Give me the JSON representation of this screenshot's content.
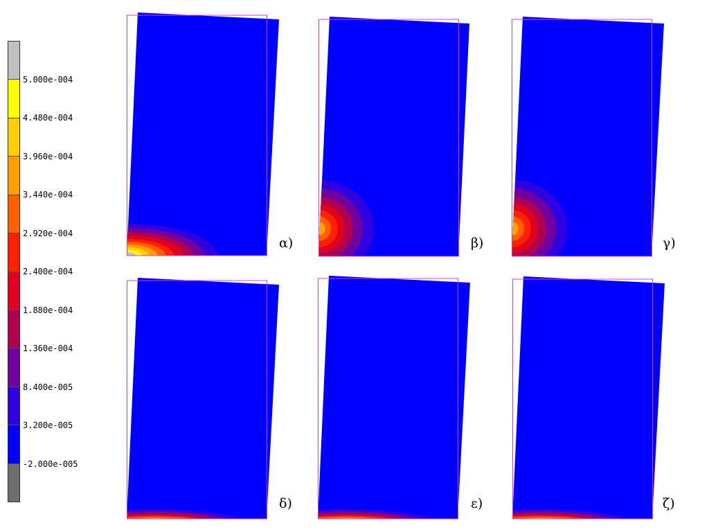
{
  "legend": {
    "colors": [
      "#c0c0c0",
      "#ffff00",
      "#ffd000",
      "#ffa000",
      "#ff6000",
      "#ff2000",
      "#e00020",
      "#b00050",
      "#7000a0",
      "#3000e0",
      "#0000ff",
      "#6e6e6e"
    ],
    "ticks": [
      "5.000e-004",
      "4.480e-004",
      "3.960e-004",
      "3.440e-004",
      "2.920e-004",
      "2.400e-004",
      "1.880e-004",
      "1.360e-004",
      "8.400e-005",
      "3.200e-005",
      "-2.000e-005"
    ]
  },
  "field_color": "#0000ff",
  "outline_color": "#d040d0",
  "panels": [
    {
      "label": "α)",
      "hotspot": "bottom-left-corner"
    },
    {
      "label": "β)",
      "hotspot": "left-edge"
    },
    {
      "label": "γ)",
      "hotspot": "left-edge"
    },
    {
      "label": "δ)",
      "hotspot": "bottom-edge"
    },
    {
      "label": "ε)",
      "hotspot": "bottom-edge"
    },
    {
      "label": "ζ)",
      "hotspot": "bottom-edge"
    }
  ]
}
